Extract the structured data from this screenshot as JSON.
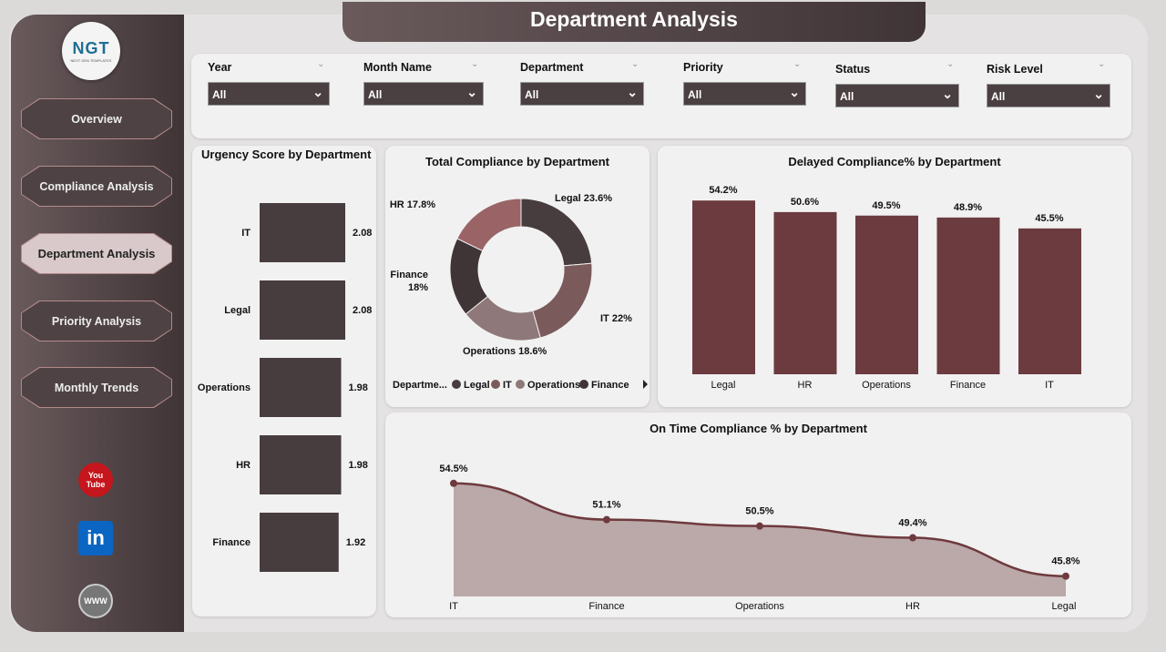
{
  "header": {
    "title": "Department Analysis"
  },
  "logo": {
    "text": "NGT",
    "subtext": "NEXT GEN TEMPLATES"
  },
  "sidebar": {
    "items": [
      {
        "label": "Overview"
      },
      {
        "label": "Compliance Analysis"
      },
      {
        "label": "Department Analysis",
        "active": true
      },
      {
        "label": "Priority Analysis"
      },
      {
        "label": "Monthly Trends"
      }
    ],
    "social": [
      {
        "icon": "youtube-icon",
        "label": "You Tube"
      },
      {
        "icon": "linkedin-icon",
        "label": "in"
      },
      {
        "icon": "globe-icon",
        "label": "WWW"
      }
    ]
  },
  "filters": [
    {
      "label": "Year",
      "value": "All"
    },
    {
      "label": "Month Name",
      "value": "All"
    },
    {
      "label": "Department",
      "value": "All"
    },
    {
      "label": "Priority",
      "value": "All"
    },
    {
      "label": "Status",
      "value": "All"
    },
    {
      "label": "Risk Level",
      "value": "All"
    }
  ],
  "colors": {
    "dark": "#473c3e",
    "bar": "#6b3b40",
    "line": "#6e3a3e",
    "area": "#bba8a9"
  },
  "chart_data": [
    {
      "type": "bar",
      "orientation": "horizontal",
      "title": "Urgency Score by Department",
      "categories": [
        "IT",
        "Legal",
        "Operations",
        "HR",
        "Finance"
      ],
      "values": [
        2.08,
        2.08,
        1.98,
        1.98,
        1.92
      ],
      "labels": [
        "2.08",
        "2.08",
        "1.98",
        "1.98",
        "1.92"
      ]
    },
    {
      "type": "pie",
      "title": "Total Compliance by Department",
      "categories": [
        "Legal",
        "IT",
        "Operations",
        "Finance",
        "HR"
      ],
      "values": [
        23.6,
        22,
        18.6,
        18,
        17.8
      ],
      "labels": [
        "Legal 23.6%",
        "IT 22%",
        "Operations 18.6%",
        "Finance 18%",
        "HR 17.8%"
      ],
      "colors": [
        "#473c3e",
        "#7b5a5c",
        "#8f7879",
        "#3f3436",
        "#9a6466"
      ],
      "legend_title": "Departme...",
      "legend": [
        "Legal",
        "IT",
        "Operations",
        "Finance"
      ]
    },
    {
      "type": "bar",
      "title": "Delayed Compliance% by Department",
      "categories": [
        "Legal",
        "HR",
        "Operations",
        "Finance",
        "IT"
      ],
      "values": [
        54.2,
        50.6,
        49.5,
        48.9,
        45.5
      ],
      "labels": [
        "54.2%",
        "50.6%",
        "49.5%",
        "48.9%",
        "45.5%"
      ],
      "ylim": [
        0,
        60
      ]
    },
    {
      "type": "area",
      "title": "On Time Compliance % by Department",
      "categories": [
        "IT",
        "Finance",
        "Operations",
        "HR",
        "Legal"
      ],
      "values": [
        54.5,
        51.1,
        50.5,
        49.4,
        45.8
      ],
      "labels": [
        "54.5%",
        "51.1%",
        "50.5%",
        "49.4%",
        "45.8%"
      ],
      "ylim": [
        44,
        55
      ]
    }
  ]
}
